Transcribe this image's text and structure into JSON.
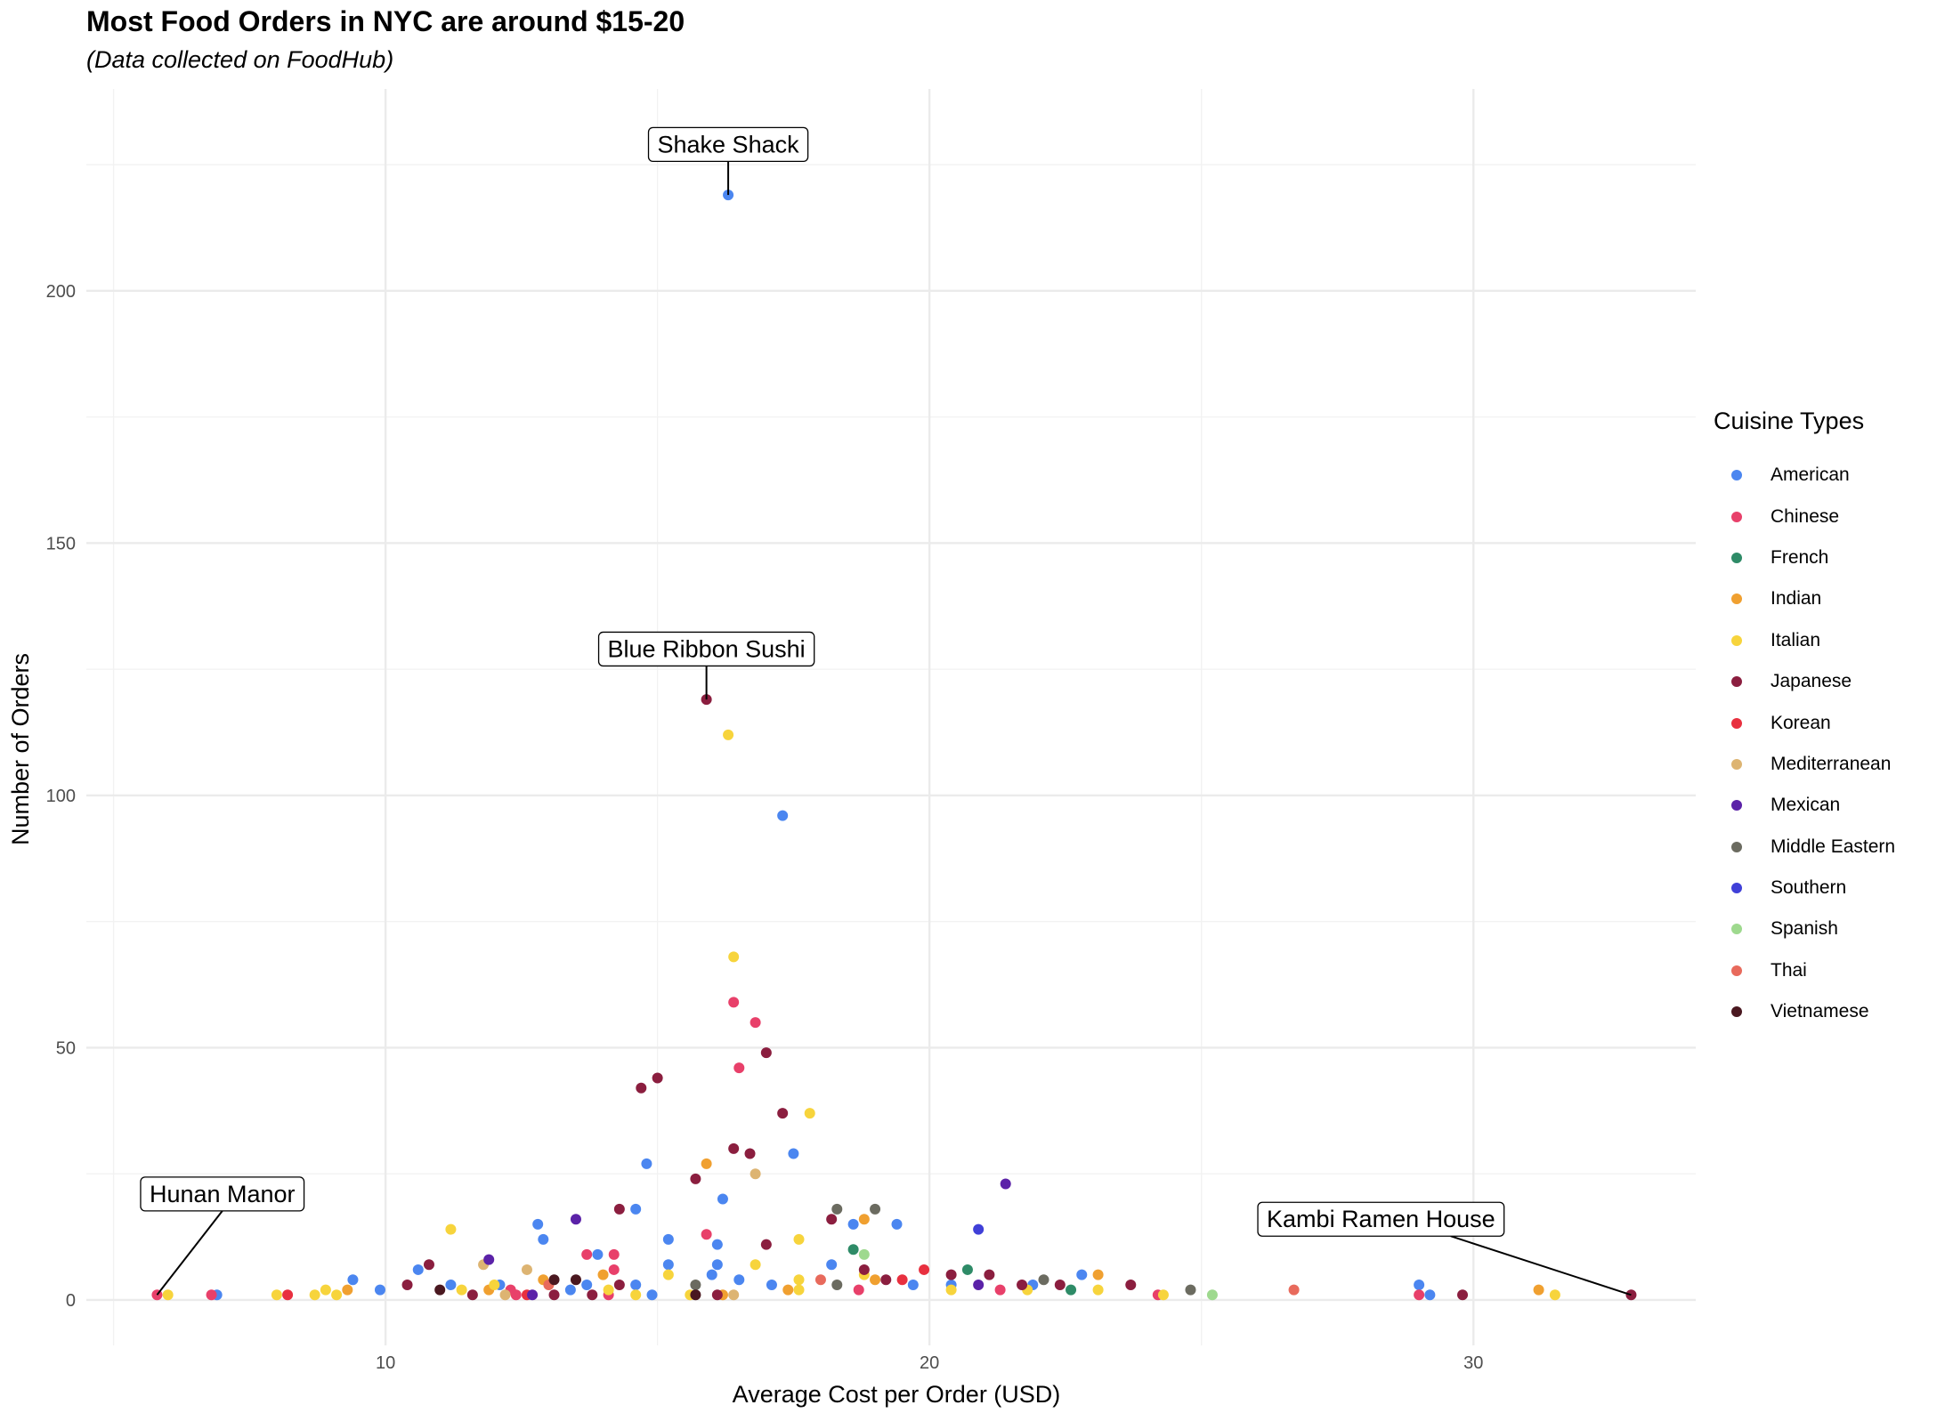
{
  "chart_data": {
    "type": "scatter",
    "title": "Most Food Orders in NYC are around $15-20",
    "subtitle": "(Data collected on FoodHub)",
    "xlabel": "Average Cost per Order (USD)",
    "ylabel": "Number of Orders",
    "xlim": [
      4.5,
      34.3
    ],
    "ylim": [
      -9,
      240
    ],
    "x_ticks": [
      10,
      20,
      30
    ],
    "y_ticks": [
      0,
      50,
      100,
      150,
      200
    ],
    "grid": true,
    "legend": {
      "title": "Cuisine Types",
      "position": "right"
    },
    "series": [
      {
        "name": "American",
        "color": "#4B86F0",
        "points": [
          [
            16.3,
            219
          ],
          [
            17.3,
            96
          ],
          [
            17.5,
            29
          ],
          [
            14.8,
            27
          ],
          [
            16.2,
            20
          ],
          [
            14.6,
            18
          ],
          [
            18.6,
            15
          ],
          [
            19.4,
            15
          ],
          [
            12.8,
            15
          ],
          [
            15.2,
            12
          ],
          [
            12.9,
            12
          ],
          [
            16.1,
            11
          ],
          [
            13.9,
            9
          ],
          [
            16.1,
            7
          ],
          [
            15.2,
            7
          ],
          [
            18.2,
            7
          ],
          [
            10.6,
            6
          ],
          [
            16.0,
            5
          ],
          [
            22.8,
            5
          ],
          [
            9.4,
            4
          ],
          [
            16.5,
            4
          ],
          [
            11.2,
            3
          ],
          [
            12.1,
            3
          ],
          [
            17.1,
            3
          ],
          [
            19.7,
            3
          ],
          [
            20.4,
            3
          ],
          [
            21.9,
            3
          ],
          [
            29.0,
            3
          ],
          [
            13.7,
            3
          ],
          [
            9.9,
            2
          ],
          [
            13.4,
            2
          ],
          [
            14.9,
            1
          ],
          [
            14.6,
            3
          ],
          [
            29.2,
            1
          ],
          [
            6.9,
            1
          ]
        ]
      },
      {
        "name": "Chinese",
        "color": "#E8406A",
        "points": [
          [
            16.4,
            59
          ],
          [
            16.8,
            55
          ],
          [
            16.5,
            46
          ],
          [
            15.9,
            13
          ],
          [
            13.7,
            9
          ],
          [
            14.2,
            9
          ],
          [
            14.2,
            6
          ],
          [
            12.3,
            2
          ],
          [
            21.3,
            2
          ],
          [
            18.7,
            2
          ],
          [
            24.2,
            1
          ],
          [
            5.8,
            1
          ],
          [
            6.8,
            1
          ],
          [
            29.0,
            1
          ],
          [
            12.4,
            1
          ],
          [
            14.1,
            1
          ]
        ]
      },
      {
        "name": "French",
        "color": "#2E8B67",
        "points": [
          [
            18.6,
            10
          ],
          [
            20.7,
            6
          ],
          [
            22.6,
            2
          ]
        ]
      },
      {
        "name": "Indian",
        "color": "#F0A030",
        "points": [
          [
            15.9,
            27
          ],
          [
            18.8,
            16
          ],
          [
            23.1,
            5
          ],
          [
            14.0,
            5
          ],
          [
            9.3,
            2
          ],
          [
            17.4,
            2
          ],
          [
            31.2,
            2
          ],
          [
            12.9,
            4
          ],
          [
            19.0,
            4
          ],
          [
            11.9,
            2
          ],
          [
            16.2,
            1
          ]
        ]
      },
      {
        "name": "Italian",
        "color": "#F7D43C",
        "points": [
          [
            16.3,
            112
          ],
          [
            16.4,
            68
          ],
          [
            17.8,
            37
          ],
          [
            11.2,
            14
          ],
          [
            17.6,
            12
          ],
          [
            16.8,
            7
          ],
          [
            15.2,
            5
          ],
          [
            18.8,
            5
          ],
          [
            12.0,
            3
          ],
          [
            8.9,
            2
          ],
          [
            11.4,
            2
          ],
          [
            17.6,
            2
          ],
          [
            20.4,
            2
          ],
          [
            21.8,
            2
          ],
          [
            23.1,
            2
          ],
          [
            14.1,
            2
          ],
          [
            31.5,
            1
          ],
          [
            24.3,
            1
          ],
          [
            9.1,
            1
          ],
          [
            6.0,
            1
          ],
          [
            8.0,
            1
          ],
          [
            8.7,
            1
          ],
          [
            14.6,
            1
          ],
          [
            15.6,
            1
          ],
          [
            17.6,
            4
          ]
        ]
      },
      {
        "name": "Japanese",
        "color": "#8B1E3F",
        "points": [
          [
            15.9,
            119
          ],
          [
            17.0,
            49
          ],
          [
            15.0,
            44
          ],
          [
            14.7,
            42
          ],
          [
            17.3,
            37
          ],
          [
            16.4,
            30
          ],
          [
            16.7,
            29
          ],
          [
            15.7,
            24
          ],
          [
            18.2,
            16
          ],
          [
            14.3,
            18
          ],
          [
            17.0,
            11
          ],
          [
            10.8,
            7
          ],
          [
            18.8,
            6
          ],
          [
            20.4,
            5
          ],
          [
            21.1,
            5
          ],
          [
            10.4,
            3
          ],
          [
            21.7,
            3
          ],
          [
            23.7,
            3
          ],
          [
            22.4,
            3
          ],
          [
            19.2,
            4
          ],
          [
            14.3,
            3
          ],
          [
            11.6,
            1
          ],
          [
            13.1,
            1
          ],
          [
            13.8,
            1
          ],
          [
            16.1,
            1
          ],
          [
            29.8,
            1
          ],
          [
            32.9,
            1
          ]
        ]
      },
      {
        "name": "Korean",
        "color": "#E8303F",
        "points": [
          [
            19.9,
            6
          ],
          [
            19.5,
            4
          ],
          [
            12.6,
            1
          ],
          [
            8.2,
            1
          ]
        ]
      },
      {
        "name": "Mediterranean",
        "color": "#DDB472",
        "points": [
          [
            16.8,
            25
          ],
          [
            12.6,
            6
          ],
          [
            11.8,
            7
          ],
          [
            12.2,
            1
          ],
          [
            16.4,
            1
          ]
        ]
      },
      {
        "name": "Mexican",
        "color": "#5B22A8",
        "points": [
          [
            21.4,
            23
          ],
          [
            13.5,
            16
          ],
          [
            11.9,
            8
          ],
          [
            12.7,
            1
          ],
          [
            20.9,
            3
          ]
        ]
      },
      {
        "name": "Middle Eastern",
        "color": "#6B6B60",
        "points": [
          [
            18.3,
            18
          ],
          [
            19.0,
            18
          ],
          [
            22.1,
            4
          ],
          [
            24.8,
            2
          ],
          [
            15.7,
            3
          ],
          [
            18.3,
            3
          ]
        ]
      },
      {
        "name": "Southern",
        "color": "#4040D8",
        "points": [
          [
            20.9,
            14
          ]
        ]
      },
      {
        "name": "Spanish",
        "color": "#9ED98E",
        "points": [
          [
            18.8,
            9
          ],
          [
            25.2,
            1
          ]
        ]
      },
      {
        "name": "Thai",
        "color": "#E86A5C",
        "points": [
          [
            26.7,
            2
          ],
          [
            18.0,
            4
          ],
          [
            13.0,
            3
          ]
        ]
      },
      {
        "name": "Vietnamese",
        "color": "#4A1820",
        "points": [
          [
            13.1,
            4
          ],
          [
            11.0,
            2
          ],
          [
            15.7,
            1
          ],
          [
            13.5,
            4
          ]
        ]
      }
    ],
    "annotations": [
      {
        "label": "Shake Shack",
        "x": 16.3,
        "y": 219
      },
      {
        "label": "Blue Ribbon Sushi",
        "x": 15.9,
        "y": 119
      },
      {
        "label": "Hunan Manor",
        "x": 5.8,
        "y": 1
      },
      {
        "label": "Kambi Ramen House",
        "x": 32.9,
        "y": 1
      }
    ]
  }
}
